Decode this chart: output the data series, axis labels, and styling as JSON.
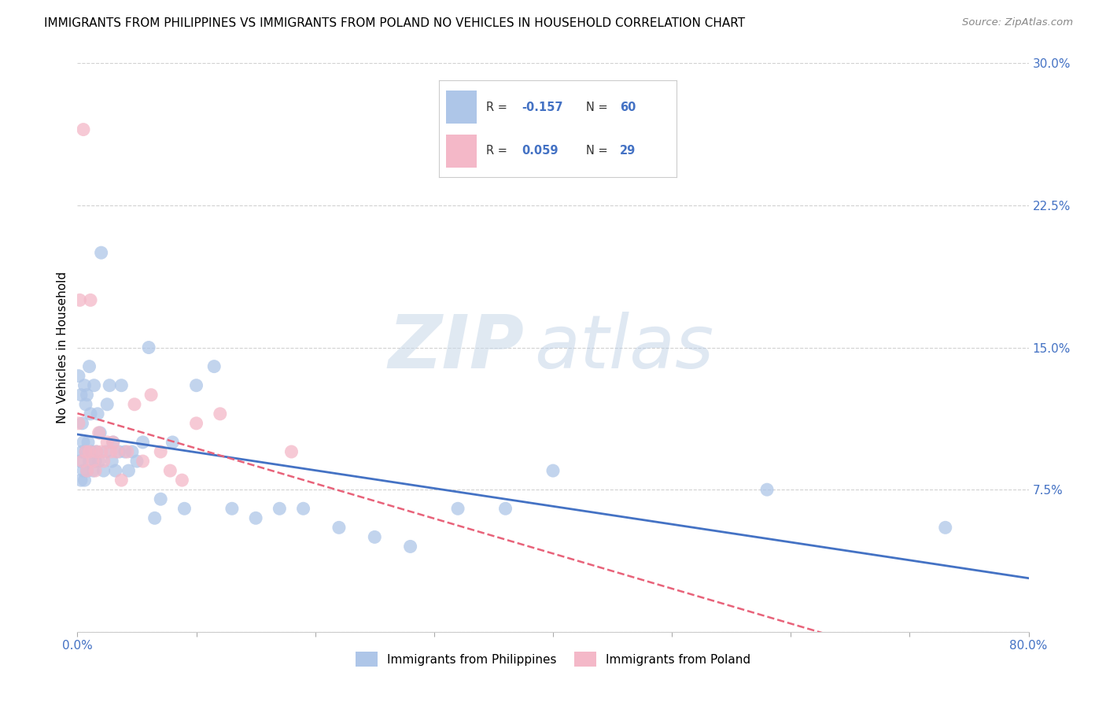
{
  "title": "IMMIGRANTS FROM PHILIPPINES VS IMMIGRANTS FROM POLAND NO VEHICLES IN HOUSEHOLD CORRELATION CHART",
  "source": "Source: ZipAtlas.com",
  "ylabel": "No Vehicles in Household",
  "xlim": [
    0.0,
    0.8
  ],
  "ylim": [
    0.0,
    0.3
  ],
  "xticks": [
    0.0,
    0.1,
    0.2,
    0.3,
    0.4,
    0.5,
    0.6,
    0.7,
    0.8
  ],
  "xticklabels": [
    "0.0%",
    "",
    "",
    "",
    "",
    "",
    "",
    "",
    "80.0%"
  ],
  "yticks": [
    0.0,
    0.075,
    0.15,
    0.225,
    0.3
  ],
  "yticklabels_right": [
    "",
    "7.5%",
    "15.0%",
    "22.5%",
    "30.0%"
  ],
  "legend_label1": "Immigrants from Philippines",
  "legend_label2": "Immigrants from Poland",
  "r1": "-0.157",
  "n1": "60",
  "r2": "0.059",
  "n2": "29",
  "color1": "#aec6e8",
  "color2": "#f4b8c8",
  "line_color1": "#4472c4",
  "line_color2": "#e8637a",
  "watermark_zip": "ZIP",
  "watermark_atlas": "atlas",
  "background_color": "#ffffff",
  "grid_color": "#cccccc",
  "title_fontsize": 11,
  "tick_color": "#4472c4",
  "philippines_x": [
    0.001,
    0.002,
    0.003,
    0.003,
    0.004,
    0.004,
    0.005,
    0.005,
    0.006,
    0.006,
    0.007,
    0.007,
    0.008,
    0.008,
    0.009,
    0.01,
    0.01,
    0.011,
    0.012,
    0.013,
    0.014,
    0.015,
    0.016,
    0.017,
    0.018,
    0.019,
    0.02,
    0.022,
    0.024,
    0.025,
    0.027,
    0.029,
    0.03,
    0.032,
    0.035,
    0.037,
    0.04,
    0.043,
    0.046,
    0.05,
    0.055,
    0.06,
    0.065,
    0.07,
    0.08,
    0.09,
    0.1,
    0.115,
    0.13,
    0.15,
    0.17,
    0.19,
    0.22,
    0.25,
    0.28,
    0.32,
    0.36,
    0.4,
    0.58,
    0.73
  ],
  "philippines_y": [
    0.135,
    0.09,
    0.125,
    0.08,
    0.095,
    0.11,
    0.085,
    0.1,
    0.08,
    0.13,
    0.12,
    0.095,
    0.125,
    0.085,
    0.1,
    0.09,
    0.14,
    0.115,
    0.095,
    0.085,
    0.13,
    0.09,
    0.095,
    0.115,
    0.09,
    0.105,
    0.2,
    0.085,
    0.095,
    0.12,
    0.13,
    0.09,
    0.1,
    0.085,
    0.095,
    0.13,
    0.095,
    0.085,
    0.095,
    0.09,
    0.1,
    0.15,
    0.06,
    0.07,
    0.1,
    0.065,
    0.13,
    0.14,
    0.065,
    0.06,
    0.065,
    0.065,
    0.055,
    0.05,
    0.045,
    0.065,
    0.065,
    0.085,
    0.075,
    0.055
  ],
  "poland_x": [
    0.001,
    0.002,
    0.004,
    0.005,
    0.007,
    0.008,
    0.01,
    0.011,
    0.013,
    0.015,
    0.016,
    0.018,
    0.02,
    0.022,
    0.025,
    0.028,
    0.03,
    0.033,
    0.037,
    0.042,
    0.048,
    0.055,
    0.062,
    0.07,
    0.078,
    0.088,
    0.1,
    0.12,
    0.18
  ],
  "poland_y": [
    0.11,
    0.175,
    0.09,
    0.265,
    0.095,
    0.085,
    0.095,
    0.175,
    0.09,
    0.085,
    0.095,
    0.105,
    0.095,
    0.09,
    0.1,
    0.095,
    0.1,
    0.095,
    0.08,
    0.095,
    0.12,
    0.09,
    0.125,
    0.095,
    0.085,
    0.08,
    0.11,
    0.115,
    0.095
  ]
}
